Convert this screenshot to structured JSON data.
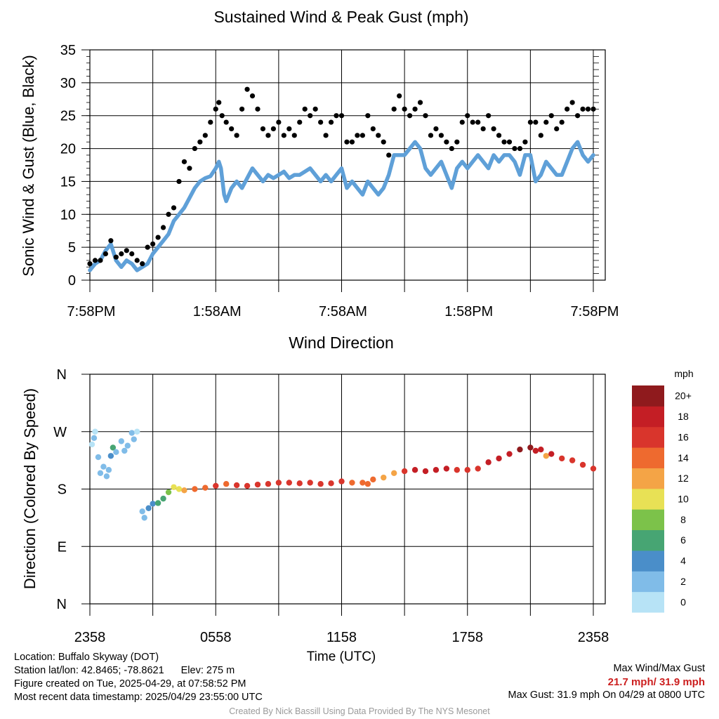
{
  "chart_data": [
    {
      "type": "line",
      "title": "Sustained Wind & Peak Gust (mph)",
      "ylabel": "Sonic Wind & Gust (Blue, Black)",
      "xlabel": "",
      "ylim": [
        0,
        35
      ],
      "yticks": [
        "0",
        "5",
        "10",
        "15",
        "20",
        "25",
        "30",
        "35"
      ],
      "xticks": [
        "7:58PM",
        "1:58AM",
        "7:58AM",
        "1:58PM",
        "7:58PM"
      ],
      "grid": true,
      "series": [
        {
          "color": "#5fa0d8",
          "points": [
            [
              0,
              1.5
            ],
            [
              0.5,
              2.5
            ],
            [
              1,
              3
            ],
            [
              1.5,
              4.5
            ],
            [
              2,
              5.5
            ],
            [
              2.5,
              3
            ],
            [
              3,
              2
            ],
            [
              3.5,
              3
            ],
            [
              4,
              2.5
            ],
            [
              4.5,
              1.5
            ],
            [
              5,
              2
            ],
            [
              5.5,
              2.5
            ],
            [
              6,
              4
            ],
            [
              6.5,
              5
            ],
            [
              7,
              6
            ],
            [
              7.5,
              7
            ],
            [
              8,
              9
            ],
            [
              8.5,
              10
            ],
            [
              9,
              11
            ],
            [
              9.5,
              12.5
            ],
            [
              10,
              14
            ],
            [
              10.5,
              15
            ],
            [
              11,
              15.5
            ],
            [
              11.5,
              15.8
            ],
            [
              12,
              17
            ],
            [
              12.3,
              18
            ],
            [
              12.5,
              17
            ],
            [
              12.8,
              13
            ],
            [
              13,
              12
            ],
            [
              13.5,
              14
            ],
            [
              14,
              15
            ],
            [
              14.5,
              14
            ],
            [
              15,
              15.5
            ],
            [
              15.5,
              17
            ],
            [
              16,
              16
            ],
            [
              16.5,
              15
            ],
            [
              17,
              16
            ],
            [
              17.5,
              15.5
            ],
            [
              18,
              16
            ],
            [
              18.5,
              16.5
            ],
            [
              19,
              15.5
            ],
            [
              19.5,
              16
            ],
            [
              20,
              16
            ],
            [
              20.5,
              16.5
            ],
            [
              21,
              17
            ],
            [
              21.5,
              16
            ],
            [
              22,
              15
            ],
            [
              22.5,
              16
            ],
            [
              23,
              15
            ],
            [
              23.5,
              16
            ],
            [
              24,
              17
            ],
            [
              24.5,
              14
            ],
            [
              25,
              15
            ],
            [
              25.5,
              14
            ],
            [
              26,
              13
            ],
            [
              26.5,
              15
            ],
            [
              27,
              14
            ],
            [
              27.5,
              13
            ],
            [
              28,
              14
            ],
            [
              28.5,
              16
            ],
            [
              29,
              19
            ],
            [
              29.5,
              19
            ],
            [
              30,
              19
            ],
            [
              30.5,
              20
            ],
            [
              31,
              21
            ],
            [
              31.5,
              20
            ],
            [
              32,
              17
            ],
            [
              32.5,
              16
            ],
            [
              33,
              17
            ],
            [
              33.5,
              18
            ],
            [
              34,
              16
            ],
            [
              34.5,
              14
            ],
            [
              35,
              17
            ],
            [
              35.5,
              18
            ],
            [
              36,
              17
            ],
            [
              36.5,
              18
            ],
            [
              37,
              19
            ],
            [
              37.5,
              18
            ],
            [
              38,
              17
            ],
            [
              38.5,
              19
            ],
            [
              39,
              18
            ],
            [
              39.5,
              19
            ],
            [
              40,
              19
            ],
            [
              40.5,
              18
            ],
            [
              41,
              16
            ],
            [
              41.5,
              19
            ],
            [
              42,
              19
            ],
            [
              42.5,
              15
            ],
            [
              43,
              16
            ],
            [
              43.5,
              18
            ],
            [
              44,
              17
            ],
            [
              44.5,
              16
            ],
            [
              45,
              16
            ],
            [
              45.5,
              18
            ],
            [
              46,
              20
            ],
            [
              46.5,
              21
            ],
            [
              47,
              19
            ],
            [
              47.5,
              18
            ],
            [
              48,
              19
            ]
          ]
        },
        {
          "color": "#000000",
          "points": [
            [
              0,
              2.5
            ],
            [
              0.5,
              3
            ],
            [
              1,
              3
            ],
            [
              1.5,
              4
            ],
            [
              2,
              6
            ],
            [
              2.5,
              3.5
            ],
            [
              3,
              4
            ],
            [
              3.5,
              4.5
            ],
            [
              4,
              4
            ],
            [
              4.5,
              3
            ],
            [
              5,
              2.5
            ],
            [
              5.5,
              5
            ],
            [
              6,
              5.5
            ],
            [
              6.5,
              6.5
            ],
            [
              7,
              8
            ],
            [
              7.5,
              10
            ],
            [
              8,
              11
            ],
            [
              8.5,
              15
            ],
            [
              9,
              18
            ],
            [
              9.5,
              17
            ],
            [
              10,
              20
            ],
            [
              10.5,
              21
            ],
            [
              11,
              22
            ],
            [
              11.5,
              24
            ],
            [
              12,
              26
            ],
            [
              12.3,
              27
            ],
            [
              12.6,
              25
            ],
            [
              13,
              24
            ],
            [
              13.5,
              23
            ],
            [
              14,
              22
            ],
            [
              14.5,
              26
            ],
            [
              15,
              29
            ],
            [
              15.5,
              28
            ],
            [
              16,
              26
            ],
            [
              16.5,
              23
            ],
            [
              17,
              22
            ],
            [
              17.5,
              23
            ],
            [
              18,
              24
            ],
            [
              18.5,
              22
            ],
            [
              19,
              23
            ],
            [
              19.5,
              22
            ],
            [
              20,
              24
            ],
            [
              20.5,
              26
            ],
            [
              21,
              25
            ],
            [
              21.5,
              26
            ],
            [
              22,
              24
            ],
            [
              22.5,
              22
            ],
            [
              23,
              24
            ],
            [
              23.5,
              25
            ],
            [
              24,
              25
            ],
            [
              24.5,
              21
            ],
            [
              25,
              21
            ],
            [
              25.5,
              22
            ],
            [
              26,
              22
            ],
            [
              26.5,
              25
            ],
            [
              27,
              23
            ],
            [
              27.5,
              22
            ],
            [
              28,
              21
            ],
            [
              28.5,
              19
            ],
            [
              29,
              26
            ],
            [
              29.5,
              28
            ],
            [
              30,
              26
            ],
            [
              30.5,
              25
            ],
            [
              31,
              26
            ],
            [
              31.5,
              27
            ],
            [
              32,
              25
            ],
            [
              32.5,
              22
            ],
            [
              33,
              23
            ],
            [
              33.5,
              22
            ],
            [
              34,
              21
            ],
            [
              34.5,
              20
            ],
            [
              35,
              21
            ],
            [
              35.5,
              24
            ],
            [
              36,
              25
            ],
            [
              36.5,
              24
            ],
            [
              37,
              24
            ],
            [
              37.5,
              23
            ],
            [
              38,
              25
            ],
            [
              38.5,
              23
            ],
            [
              39,
              22
            ],
            [
              39.5,
              21
            ],
            [
              40,
              21
            ],
            [
              40.5,
              20
            ],
            [
              41,
              20
            ],
            [
              41.5,
              21
            ],
            [
              42,
              24
            ],
            [
              42.5,
              24
            ],
            [
              43,
              22
            ],
            [
              43.5,
              24
            ],
            [
              44,
              25
            ],
            [
              44.5,
              23
            ],
            [
              45,
              24
            ],
            [
              45.5,
              26
            ],
            [
              46,
              27
            ],
            [
              46.5,
              25
            ],
            [
              47,
              26
            ],
            [
              47.5,
              26
            ],
            [
              48,
              26
            ]
          ]
        }
      ]
    },
    {
      "type": "scatter",
      "title": "Wind Direction",
      "ylabel": "Direction (Colored By Speed)",
      "xlabel": "Time (UTC)",
      "ylim": [
        0,
        360
      ],
      "yticks": [
        "N",
        "E",
        "S",
        "W",
        "N"
      ],
      "xticks": [
        "2358",
        "0558",
        "1158",
        "1758",
        "2358"
      ],
      "grid": true,
      "colorbar": {
        "unit": "mph",
        "labels": [
          "0",
          "2",
          "4",
          "6",
          "8",
          "10",
          "12",
          "14",
          "16",
          "18",
          "20+"
        ],
        "colors": [
          "#b7e3f6",
          "#80bce8",
          "#4a8ec9",
          "#47a573",
          "#7cc24a",
          "#e8e155",
          "#f4a446",
          "#ee6a2f",
          "#d9352c",
          "#c41e25",
          "#8f1a1d"
        ]
      },
      "points": [
        [
          0.2,
          250,
          1
        ],
        [
          0.4,
          260,
          2
        ],
        [
          0.5,
          270,
          1
        ],
        [
          0.8,
          230,
          2
        ],
        [
          1.0,
          205,
          2
        ],
        [
          1.3,
          215,
          2
        ],
        [
          1.6,
          200,
          2
        ],
        [
          1.8,
          210,
          3
        ],
        [
          2.0,
          232,
          4
        ],
        [
          2.2,
          245,
          6
        ],
        [
          2.5,
          238,
          3
        ],
        [
          3.0,
          255,
          2
        ],
        [
          3.3,
          240,
          3
        ],
        [
          3.6,
          248,
          2
        ],
        [
          4.0,
          268,
          2
        ],
        [
          4.2,
          258,
          2
        ],
        [
          4.5,
          270,
          1
        ],
        [
          5.0,
          145,
          2
        ],
        [
          5.2,
          135,
          3
        ],
        [
          5.6,
          150,
          5
        ],
        [
          6.0,
          157,
          5
        ],
        [
          6.5,
          158,
          7
        ],
        [
          7.0,
          165,
          7
        ],
        [
          7.5,
          175,
          8
        ],
        [
          8.0,
          183,
          10
        ],
        [
          8.5,
          180,
          11
        ],
        [
          9.0,
          178,
          12
        ],
        [
          10,
          180,
          14
        ],
        [
          11,
          182,
          15
        ],
        [
          12,
          185,
          16
        ],
        [
          13,
          188,
          14
        ],
        [
          14,
          186,
          16
        ],
        [
          15,
          185,
          17
        ],
        [
          16,
          187,
          16
        ],
        [
          17,
          188,
          16
        ],
        [
          18,
          190,
          17
        ],
        [
          19,
          190,
          17
        ],
        [
          20,
          189,
          16
        ],
        [
          21,
          190,
          16
        ],
        [
          22,
          188,
          17
        ],
        [
          23,
          189,
          16
        ],
        [
          24,
          192,
          16
        ],
        [
          25,
          190,
          15
        ],
        [
          26,
          190,
          15
        ],
        [
          26.5,
          188,
          14
        ],
        [
          27,
          195,
          14
        ],
        [
          28,
          198,
          12
        ],
        [
          29,
          205,
          13
        ],
        [
          30,
          208,
          16
        ],
        [
          31,
          210,
          19
        ],
        [
          32,
          208,
          19
        ],
        [
          33,
          210,
          19
        ],
        [
          34,
          212,
          19
        ],
        [
          35,
          210,
          17
        ],
        [
          36,
          210,
          17
        ],
        [
          37,
          212,
          16
        ],
        [
          38,
          222,
          18
        ],
        [
          39,
          228,
          18
        ],
        [
          40,
          235,
          19
        ],
        [
          41,
          242,
          20
        ],
        [
          42,
          245,
          20
        ],
        [
          42.5,
          240,
          19
        ],
        [
          43,
          242,
          18
        ],
        [
          43.5,
          232,
          13
        ],
        [
          44,
          235,
          18
        ],
        [
          45,
          228,
          17
        ],
        [
          46,
          225,
          17
        ],
        [
          47,
          218,
          17
        ],
        [
          48,
          212,
          17
        ]
      ]
    }
  ],
  "footer": {
    "location": "Location: Buffalo Skyway (DOT)",
    "latlon": "Station lat/lon: 42.8465; -78.8621",
    "elev": "Elev: 275 m",
    "created": "Figure created on Tue, 2025-04-29, at 07:58:52 PM",
    "recent": "Most recent data timestamp: 2025/04/29 23:55:00 UTC",
    "max_label": "Max Wind/Max Gust",
    "max_values": "21.7 mph/ 31.9 mph",
    "max_gust": "Max Gust: 31.9 mph On 04/29 at 0800 UTC",
    "credit": "Created By Nick Bassill Using Data Provided By The NYS Mesonet"
  }
}
